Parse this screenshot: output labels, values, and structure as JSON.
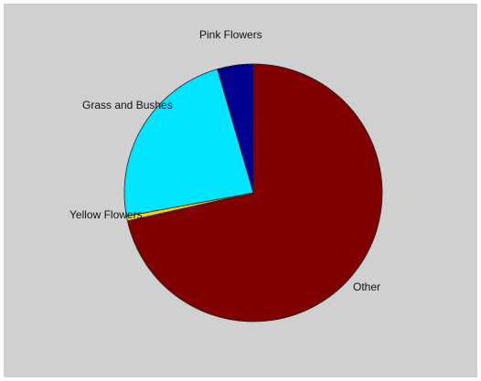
{
  "chart_data": {
    "type": "pie",
    "title": "",
    "legend": "none",
    "slices": [
      {
        "label": "Other",
        "value": 71.5,
        "color": "#800000"
      },
      {
        "label": "Yellow Flowers",
        "value": 0.6,
        "color": "#ffd400"
      },
      {
        "label": "Grass and Bushes",
        "value": 23.4,
        "color": "#00e4ff"
      },
      {
        "label": "Pink Flowers",
        "value": 4.5,
        "color": "#000090"
      }
    ]
  }
}
